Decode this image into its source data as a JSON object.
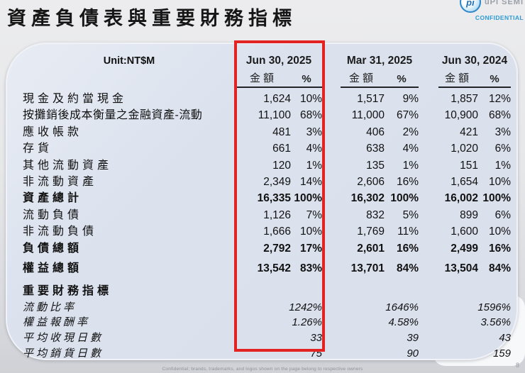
{
  "page": {
    "title": "資產負債表與重要財務指標",
    "page_number": "8",
    "footer": "Confidential; brands, trademarks, and logos shown on the page belong to respective owners"
  },
  "logo": {
    "mark": "pi",
    "text": "uPI SEMI",
    "confidential": "CONFIDENTIAL",
    "confidential_color": "#2e9bd6"
  },
  "table": {
    "unit_label": "Unit:NT$M",
    "highlight_color": "#e32322",
    "column_groups": [
      {
        "date": "Jun 30, 2025",
        "highlighted": true
      },
      {
        "date": "Mar 31, 2025",
        "highlighted": false
      },
      {
        "date": "Jun 30, 2024",
        "highlighted": false
      }
    ],
    "sub_headers": {
      "amount": "金額",
      "percent": "%"
    },
    "rows": [
      {
        "label": "現金及約當現金",
        "style": "normal",
        "cells": [
          "1,624",
          "10%",
          "1,517",
          "9%",
          "1,857",
          "12%"
        ]
      },
      {
        "label": "按攤銷後成本衡量之金融資產-流動",
        "style": "normal",
        "cells": [
          "11,100",
          "68%",
          "11,000",
          "67%",
          "10,900",
          "68%"
        ]
      },
      {
        "label": "應收帳款",
        "style": "normal",
        "cells": [
          "481",
          "3%",
          "406",
          "2%",
          "421",
          "3%"
        ]
      },
      {
        "label": "存貨",
        "style": "normal",
        "cells": [
          "661",
          "4%",
          "638",
          "4%",
          "1,020",
          "6%"
        ]
      },
      {
        "label": "其他流動資產",
        "style": "normal",
        "cells": [
          "120",
          "1%",
          "135",
          "1%",
          "151",
          "1%"
        ]
      },
      {
        "label": "非流動資產",
        "style": "normal",
        "cells": [
          "2,349",
          "14%",
          "2,606",
          "16%",
          "1,654",
          "10%"
        ]
      },
      {
        "label": "資產總計",
        "style": "bold",
        "cells": [
          "16,335",
          "100%",
          "16,302",
          "100%",
          "16,002",
          "100%"
        ]
      },
      {
        "label": "流動負債",
        "style": "normal",
        "cells": [
          "1,126",
          "7%",
          "832",
          "5%",
          "899",
          "6%"
        ]
      },
      {
        "label": "非流動負債",
        "style": "normal",
        "cells": [
          "1,666",
          "10%",
          "1,769",
          "11%",
          "1,600",
          "10%"
        ]
      },
      {
        "label": "負債總額",
        "style": "bold",
        "cells": [
          "2,792",
          "17%",
          "2,601",
          "16%",
          "2,499",
          "16%"
        ]
      },
      {
        "label": "權益總額",
        "style": "bold",
        "gap_before": true,
        "cells": [
          "13,542",
          "83%",
          "13,701",
          "84%",
          "13,504",
          "84%"
        ]
      },
      {
        "label": "重要財務指標",
        "style": "section",
        "cells": []
      },
      {
        "label": "流動比率",
        "style": "indicator",
        "cells": [
          "1242%",
          "1646%",
          "1596%"
        ]
      },
      {
        "label": "權益報酬率",
        "style": "indicator",
        "cells": [
          "1.26%",
          "4.58%",
          "3.56%"
        ]
      },
      {
        "label": "平均收現日數",
        "style": "indicator",
        "cells": [
          "33",
          "39",
          "43"
        ]
      },
      {
        "label": "平均銷貨日數",
        "style": "indicator",
        "cells": [
          "75",
          "90",
          "159"
        ]
      }
    ]
  }
}
